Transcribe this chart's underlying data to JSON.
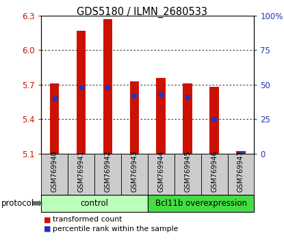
{
  "title": "GDS5180 / ILMN_2680533",
  "samples": [
    "GSM769940",
    "GSM769941",
    "GSM769942",
    "GSM769943",
    "GSM769944",
    "GSM769945",
    "GSM769946",
    "GSM769947"
  ],
  "red_values": [
    5.71,
    6.17,
    6.27,
    5.73,
    5.76,
    5.71,
    5.68,
    5.12
  ],
  "blue_values": [
    40,
    48,
    48,
    42,
    43,
    41,
    25,
    0
  ],
  "y_min": 5.1,
  "y_max": 6.3,
  "y_ticks": [
    5.1,
    5.4,
    5.7,
    6.0,
    6.3
  ],
  "right_y_ticks": [
    0,
    25,
    50,
    75,
    100
  ],
  "right_y_labels": [
    "0",
    "25",
    "50",
    "75",
    "100%"
  ],
  "bar_color": "#cc1100",
  "blue_color": "#2233bb",
  "bg_color": "#ffffff",
  "tick_box_color": "#cccccc",
  "control_color": "#bbffbb",
  "overexp_color": "#44dd44",
  "control_label": "control",
  "overexp_label": "Bcl11b overexpression",
  "protocol_label": "protocol",
  "legend_red": "transformed count",
  "legend_blue": "percentile rank within the sample",
  "control_count": 4,
  "overexp_count": 4
}
